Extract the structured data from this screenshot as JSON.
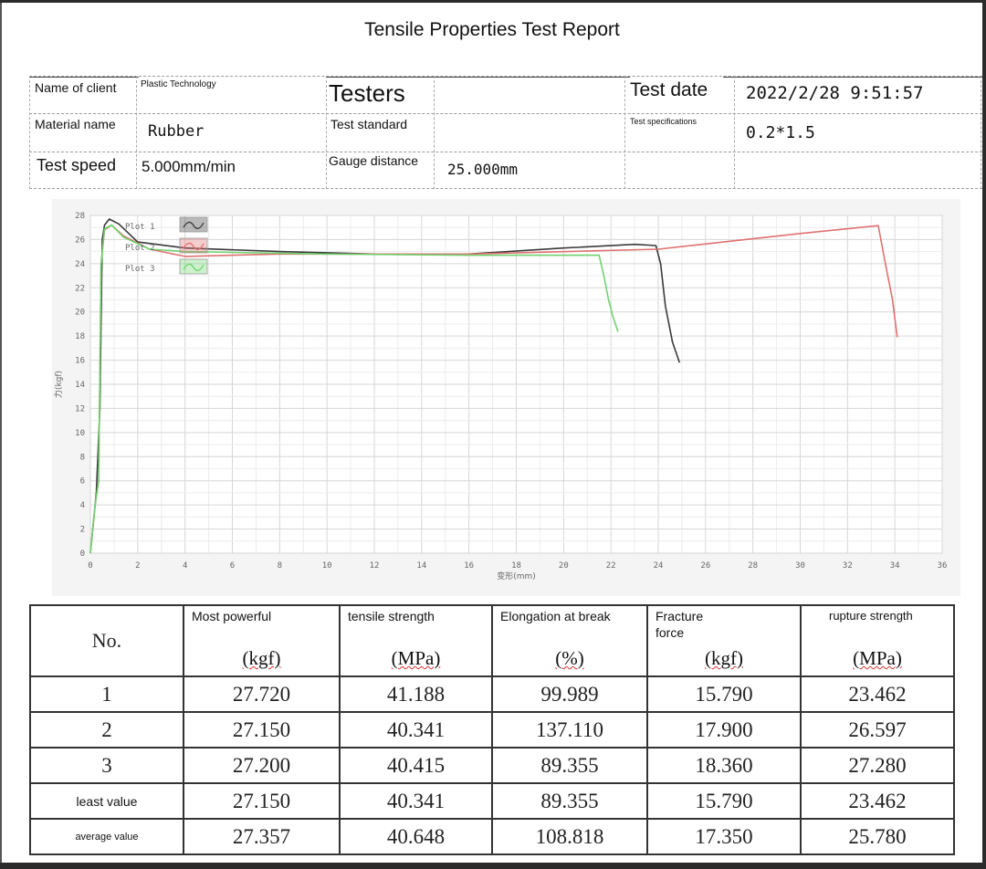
{
  "report": {
    "title": "Tensile Properties Test Report"
  },
  "info": {
    "client_label": "Name of client",
    "client_value": "Plastic Technology",
    "testers_label": "Testers",
    "testers_value": "",
    "test_date_label": "Test date",
    "test_date_value": "2022/2/28 9:51:57",
    "material_label": "Material name",
    "material_value": "Rubber",
    "standard_label": "Test standard",
    "standard_value": "",
    "spec_label": "Test specifications",
    "spec_value": "0.2*1.5",
    "speed_label": "Test speed",
    "speed_value": "5.000mm/min",
    "gauge_label": "Gauge distance",
    "gauge_value": "25.000mm"
  },
  "chart_data": {
    "type": "line",
    "ylabel": "力(kgf)",
    "xlabel": "变形(mm)",
    "xlim": [
      0,
      36
    ],
    "ylim": [
      0,
      28
    ],
    "x_ticks": [
      0,
      2,
      4,
      6,
      8,
      10,
      12,
      14,
      16,
      18,
      20,
      22,
      24,
      26,
      28,
      30,
      32,
      34,
      36
    ],
    "y_ticks": [
      0,
      2,
      4,
      6,
      8,
      10,
      12,
      14,
      16,
      18,
      20,
      22,
      24,
      26,
      28
    ],
    "grid": true,
    "legend_position": "top-left",
    "series": [
      {
        "name": "Plot 1",
        "color": "#3a3a3a",
        "x": [
          0,
          0.25,
          0.4,
          0.5,
          0.6,
          0.8,
          1.2,
          2,
          4,
          8,
          12,
          16,
          20,
          23,
          23.9,
          24.1,
          24.3,
          24.6,
          24.9
        ],
        "y": [
          0,
          5,
          12,
          26,
          27.2,
          27.7,
          27.3,
          25.8,
          25.3,
          25.0,
          24.8,
          24.8,
          25.3,
          25.6,
          25.5,
          24.0,
          20.5,
          17.5,
          15.8
        ]
      },
      {
        "name": "Plot 2",
        "color": "#e07070",
        "x": [
          0,
          0.2,
          0.35,
          0.45,
          0.6,
          0.9,
          1.4,
          2.5,
          4,
          8,
          16,
          24,
          30,
          33.3,
          33.6,
          33.9,
          34.1
        ],
        "y": [
          0,
          4,
          6,
          24,
          26.8,
          27.2,
          26.3,
          25.2,
          24.6,
          24.8,
          24.8,
          25.2,
          26.5,
          27.15,
          24.0,
          21.0,
          17.9
        ]
      },
      {
        "name": "Plot 3",
        "color": "#6fd36f",
        "x": [
          0,
          0.2,
          0.35,
          0.45,
          0.6,
          0.9,
          1.4,
          2.5,
          4,
          10,
          16,
          20,
          21.5,
          21.7,
          21.9,
          22.1,
          22.3
        ],
        "y": [
          0,
          4,
          6,
          24,
          26.9,
          27.2,
          26.2,
          25.2,
          25.0,
          24.8,
          24.7,
          24.7,
          24.7,
          23.0,
          21.0,
          19.5,
          18.36
        ]
      }
    ]
  },
  "results": {
    "no_header": "No.",
    "columns": [
      {
        "name": "Most powerful",
        "unit": "(kgf)"
      },
      {
        "name": "tensile strength",
        "unit": "(MPa)"
      },
      {
        "name": "Elongation at break",
        "unit": "(%)"
      },
      {
        "name": "Fracture force",
        "unit": "(kgf)"
      },
      {
        "name": "rupture strength",
        "unit": "(MPa)"
      }
    ],
    "rows": [
      {
        "label": "1",
        "values": [
          "27.720",
          "41.188",
          "99.989",
          "15.790",
          "23.462"
        ]
      },
      {
        "label": "2",
        "values": [
          "27.150",
          "40.341",
          "137.110",
          "17.900",
          "26.597"
        ]
      },
      {
        "label": "3",
        "values": [
          "27.200",
          "40.415",
          "89.355",
          "18.360",
          "27.280"
        ]
      },
      {
        "label": "least value",
        "values": [
          "27.150",
          "40.341",
          "89.355",
          "15.790",
          "23.462"
        ]
      },
      {
        "label": "average value",
        "values": [
          "27.357",
          "40.648",
          "108.818",
          "17.350",
          "25.780"
        ]
      }
    ]
  }
}
